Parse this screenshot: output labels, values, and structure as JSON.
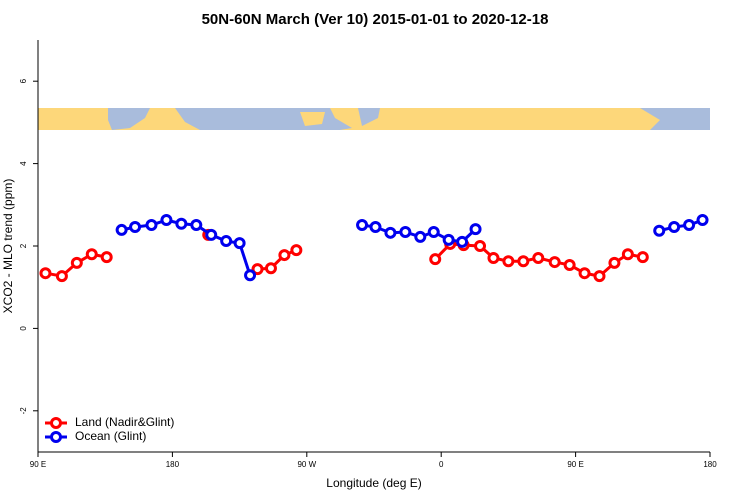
{
  "chart_data": {
    "type": "line",
    "title": "50N-60N March (Ver 10)   2015-01-01 to 2020-12-18",
    "x_label": "Longitude (deg E)",
    "y_label": "XCO2 - MLO trend (ppm)",
    "xlim": [
      90,
      540
    ],
    "ylim": [
      -3,
      7
    ],
    "xticks": [
      {
        "value": 90,
        "label": "90 E"
      },
      180,
      {
        "value": 270,
        "label": "90 W"
      },
      0,
      {
        "value": 450,
        "label": "90 E"
      },
      {
        "value": 540,
        "label": "180"
      }
    ],
    "yticks": [
      -2,
      0,
      2,
      4,
      6
    ],
    "legend": "bottom-left",
    "series": [
      {
        "name": "Land (Nadir&Glint)",
        "color": "#ff0000",
        "x": [
          95,
          106,
          116,
          126,
          136,
          null,
          204,
          null,
          237,
          246,
          255,
          263,
          null,
          356,
          366,
          375,
          386,
          395,
          405,
          415,
          425,
          436,
          446,
          456,
          466,
          476,
          485,
          495
        ],
        "values": [
          1.34,
          1.27,
          1.59,
          1.8,
          1.73,
          null,
          2.27,
          null,
          1.44,
          1.46,
          1.78,
          1.9,
          null,
          1.68,
          2.05,
          2.02,
          2.0,
          1.71,
          1.63,
          1.63,
          1.71,
          1.61,
          1.54,
          1.34,
          1.27,
          1.59,
          1.8,
          1.73
        ]
      },
      {
        "name": "Ocean (Glint)",
        "color": "#0000ee",
        "x": [
          146,
          155,
          166,
          176,
          186,
          196,
          206,
          216,
          225,
          232,
          null,
          307,
          316,
          326,
          336,
          346,
          355,
          365,
          374,
          383,
          null,
          506,
          516,
          526,
          535
        ],
        "values": [
          2.39,
          2.46,
          2.51,
          2.63,
          2.54,
          2.51,
          2.27,
          2.12,
          2.07,
          1.29,
          null,
          2.51,
          2.46,
          2.32,
          2.34,
          2.22,
          2.34,
          2.15,
          2.1,
          2.41,
          null,
          2.37,
          2.46,
          2.51,
          2.63
        ]
      }
    ]
  }
}
